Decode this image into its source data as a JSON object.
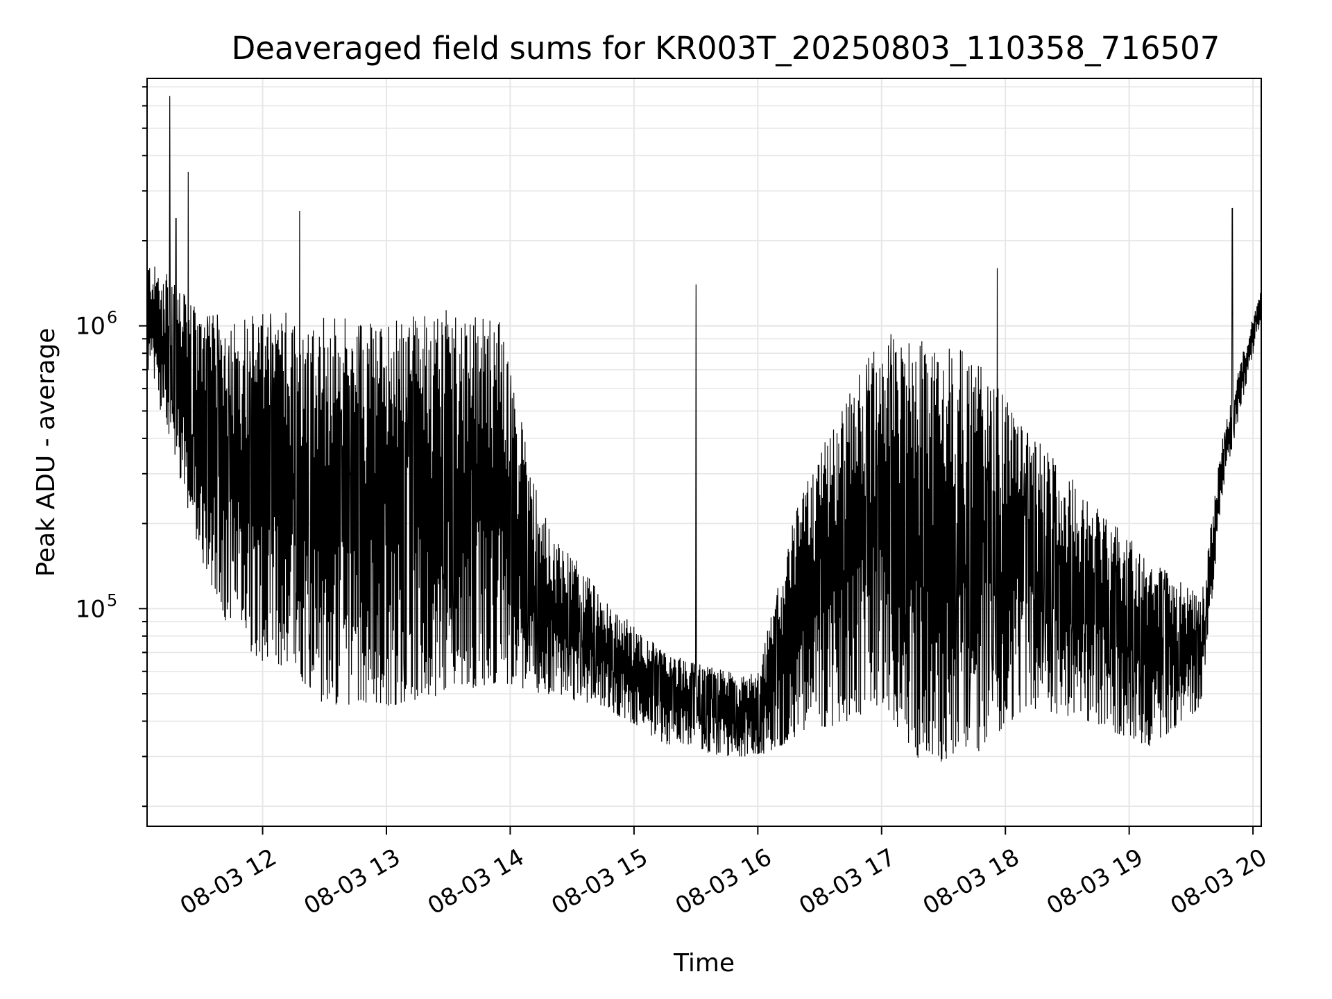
{
  "chart_data": {
    "type": "line",
    "title": "Deaveraged field sums for KR003T_20250803_110358_716507",
    "xlabel": "Time",
    "ylabel": "Peak ADU - average",
    "y_scale": "log",
    "ylim": [
      17000,
      7500000
    ],
    "xlim": [
      "2025-08-03 11:04",
      "2025-08-03 20:04"
    ],
    "grid": true,
    "line_color": "#000000",
    "grid_color": "#e6e6e6",
    "x_ticks": [
      "08-03 12",
      "08-03 13",
      "08-03 14",
      "08-03 15",
      "08-03 16",
      "08-03 17",
      "08-03 18",
      "08-03 19",
      "08-03 20"
    ],
    "y_ticks": [
      {
        "base": "10",
        "exp": "5",
        "value": 100000
      },
      {
        "base": "10",
        "exp": "6",
        "value": 1000000
      }
    ],
    "series": [
      {
        "name": "",
        "description_points": [
          {
            "x": "2025-08-03 11:04",
            "lo": 700000,
            "hi": 1700000
          },
          {
            "x": "2025-08-03 11:15",
            "lo": 400000,
            "hi": 1500000
          },
          {
            "x": "2025-08-03 11:30",
            "lo": 150000,
            "hi": 1100000
          },
          {
            "x": "2025-08-03 11:45",
            "lo": 80000,
            "hi": 1100000
          },
          {
            "x": "2025-08-03 12:00",
            "lo": 65000,
            "hi": 1100000
          },
          {
            "x": "2025-08-03 12:15",
            "lo": 60000,
            "hi": 1150000
          },
          {
            "x": "2025-08-03 12:30",
            "lo": 45000,
            "hi": 1100000
          },
          {
            "x": "2025-08-03 13:00",
            "lo": 45000,
            "hi": 1050000
          },
          {
            "x": "2025-08-03 13:30",
            "lo": 50000,
            "hi": 1150000
          },
          {
            "x": "2025-08-03 13:55",
            "lo": 55000,
            "hi": 1050000
          },
          {
            "x": "2025-08-03 14:15",
            "lo": 50000,
            "hi": 220000
          },
          {
            "x": "2025-08-03 14:45",
            "lo": 45000,
            "hi": 110000
          },
          {
            "x": "2025-08-03 15:15",
            "lo": 33000,
            "hi": 70000
          },
          {
            "x": "2025-08-03 15:45",
            "lo": 30000,
            "hi": 60000
          },
          {
            "x": "2025-08-03 16:00",
            "lo": 30000,
            "hi": 60000
          },
          {
            "x": "2025-08-03 16:20",
            "lo": 35000,
            "hi": 250000
          },
          {
            "x": "2025-08-03 16:45",
            "lo": 40000,
            "hi": 600000
          },
          {
            "x": "2025-08-03 17:00",
            "lo": 45000,
            "hi": 950000
          },
          {
            "x": "2025-08-03 17:20",
            "lo": 28000,
            "hi": 900000
          },
          {
            "x": "2025-08-03 17:45",
            "lo": 30000,
            "hi": 800000
          },
          {
            "x": "2025-08-03 18:10",
            "lo": 45000,
            "hi": 450000
          },
          {
            "x": "2025-08-03 18:40",
            "lo": 40000,
            "hi": 250000
          },
          {
            "x": "2025-08-03 19:10",
            "lo": 32000,
            "hi": 150000
          },
          {
            "x": "2025-08-03 19:35",
            "lo": 45000,
            "hi": 110000
          },
          {
            "x": "2025-08-03 19:45",
            "lo": 250000,
            "hi": 400000
          },
          {
            "x": "2025-08-03 19:55",
            "lo": 550000,
            "hi": 800000
          },
          {
            "x": "2025-08-03 20:04",
            "lo": 1050000,
            "hi": 1350000
          }
        ],
        "spikes": [
          {
            "x": "2025-08-03 11:15",
            "y": 6500000
          },
          {
            "x": "2025-08-03 11:18",
            "y": 2400000
          },
          {
            "x": "2025-08-03 11:24",
            "y": 3500000
          },
          {
            "x": "2025-08-03 12:18",
            "y": 2550000
          },
          {
            "x": "2025-08-03 15:30",
            "y": 1400000
          },
          {
            "x": "2025-08-03 17:56",
            "y": 1600000
          },
          {
            "x": "2025-08-03 19:50",
            "y": 2600000
          }
        ]
      }
    ]
  }
}
